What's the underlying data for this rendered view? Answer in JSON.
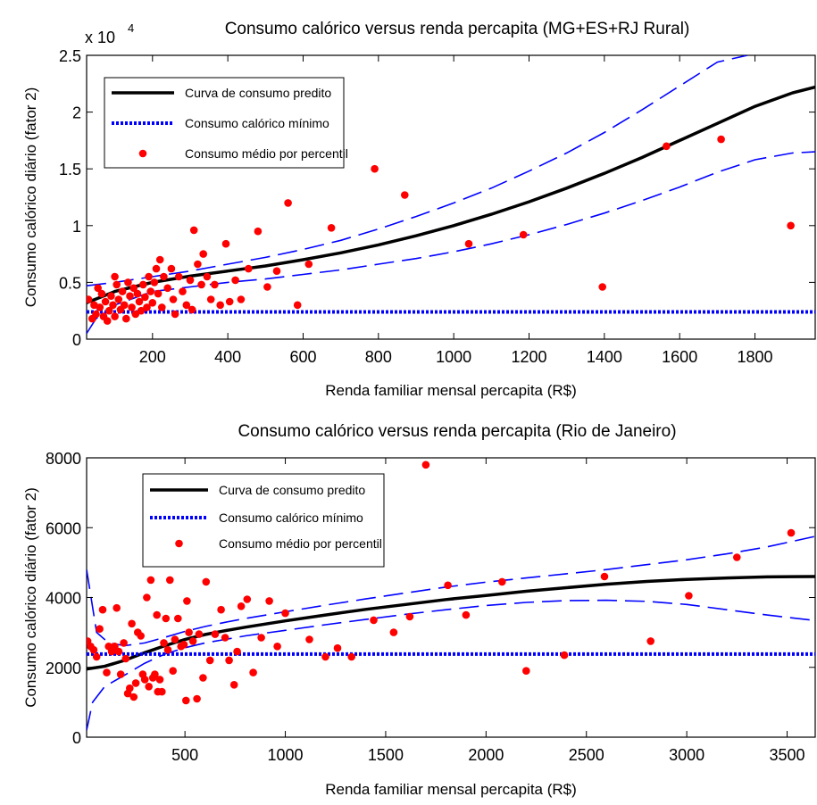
{
  "chart_data": [
    {
      "type": "scatter",
      "title": "Consumo calórico versus renda percapita (MG+ES+RJ Rural)",
      "xlabel": "Renda familiar mensal percapita (R$)",
      "ylabel": "Consumo calórico diário (fator 2)",
      "y_multiplier_label": "x 10",
      "y_multiplier_exponent": "4",
      "xlim": [
        25,
        1960
      ],
      "ylim": [
        0,
        2.5
      ],
      "x_ticks": [
        200,
        400,
        600,
        800,
        1000,
        1200,
        1400,
        1600,
        1800
      ],
      "x_tick_labels": [
        "200",
        "400",
        "600",
        "800",
        "1000",
        "1200",
        "1400",
        "1600",
        "1800"
      ],
      "y_ticks": [
        0,
        0.5,
        1,
        1.5,
        2,
        2.5
      ],
      "y_tick_labels": [
        "0",
        "0.5",
        "1",
        "1.5",
        "2",
        "2.5"
      ],
      "grid": false,
      "legend_position": "top-left",
      "colors": {
        "predicted": "#000000",
        "minimum": "#0000ff",
        "points": "#ff0000",
        "bounds": "#0000ff"
      },
      "series": [
        {
          "name": "Curva de consumo predito",
          "kind": "line",
          "x": [
            25,
            100,
            200,
            300,
            400,
            500,
            600,
            700,
            800,
            900,
            1000,
            1100,
            1200,
            1300,
            1400,
            1500,
            1600,
            1700,
            1800,
            1900,
            1960
          ],
          "y": [
            0.32,
            0.42,
            0.5,
            0.555,
            0.6,
            0.645,
            0.7,
            0.76,
            0.83,
            0.91,
            1.0,
            1.1,
            1.21,
            1.33,
            1.46,
            1.6,
            1.75,
            1.9,
            2.05,
            2.17,
            2.22
          ]
        },
        {
          "name": "Consumo calórico mínimo",
          "kind": "hline",
          "y": 0.24
        },
        {
          "name": "Consumo médio por percentil",
          "kind": "scatter",
          "points": [
            [
              30,
              0.35
            ],
            [
              40,
              0.18
            ],
            [
              45,
              0.3
            ],
            [
              50,
              0.22
            ],
            [
              55,
              0.45
            ],
            [
              60,
              0.28
            ],
            [
              65,
              0.4
            ],
            [
              70,
              0.2
            ],
            [
              75,
              0.33
            ],
            [
              80,
              0.16
            ],
            [
              85,
              0.25
            ],
            [
              90,
              0.38
            ],
            [
              95,
              0.3
            ],
            [
              100,
              0.55
            ],
            [
              100,
              0.2
            ],
            [
              105,
              0.48
            ],
            [
              110,
              0.35
            ],
            [
              115,
              0.26
            ],
            [
              120,
              0.42
            ],
            [
              125,
              0.3
            ],
            [
              130,
              0.18
            ],
            [
              135,
              0.5
            ],
            [
              140,
              0.38
            ],
            [
              145,
              0.28
            ],
            [
              150,
              0.45
            ],
            [
              155,
              0.22
            ],
            [
              160,
              0.4
            ],
            [
              165,
              0.33
            ],
            [
              170,
              0.25
            ],
            [
              175,
              0.48
            ],
            [
              180,
              0.37
            ],
            [
              185,
              0.28
            ],
            [
              190,
              0.55
            ],
            [
              195,
              0.42
            ],
            [
              200,
              0.32
            ],
            [
              205,
              0.5
            ],
            [
              210,
              0.62
            ],
            [
              215,
              0.4
            ],
            [
              220,
              0.7
            ],
            [
              225,
              0.28
            ],
            [
              230,
              0.55
            ],
            [
              240,
              0.45
            ],
            [
              250,
              0.62
            ],
            [
              255,
              0.35
            ],
            [
              260,
              0.22
            ],
            [
              270,
              0.55
            ],
            [
              280,
              0.42
            ],
            [
              290,
              0.3
            ],
            [
              300,
              0.52
            ],
            [
              305,
              0.26
            ],
            [
              310,
              0.96
            ],
            [
              320,
              0.66
            ],
            [
              330,
              0.48
            ],
            [
              335,
              0.75
            ],
            [
              345,
              0.55
            ],
            [
              355,
              0.35
            ],
            [
              365,
              0.48
            ],
            [
              380,
              0.3
            ],
            [
              395,
              0.84
            ],
            [
              405,
              0.33
            ],
            [
              420,
              0.52
            ],
            [
              435,
              0.35
            ],
            [
              455,
              0.62
            ],
            [
              480,
              0.95
            ],
            [
              505,
              0.46
            ],
            [
              530,
              0.6
            ],
            [
              560,
              1.2
            ],
            [
              585,
              0.3
            ],
            [
              615,
              0.66
            ],
            [
              675,
              0.98
            ],
            [
              790,
              1.5
            ],
            [
              870,
              1.27
            ],
            [
              1040,
              0.84
            ],
            [
              1185,
              0.92
            ],
            [
              1395,
              0.46
            ],
            [
              1565,
              1.7
            ],
            [
              1710,
              1.76
            ],
            [
              1895,
              1.0
            ]
          ]
        },
        {
          "name": "",
          "kind": "bound-upper",
          "x": [
            25,
            100,
            200,
            300,
            400,
            500,
            600,
            700,
            800,
            900,
            1000,
            1100,
            1200,
            1300,
            1400,
            1500,
            1600,
            1700,
            1780
          ],
          "y": [
            0.47,
            0.5,
            0.55,
            0.6,
            0.66,
            0.72,
            0.79,
            0.87,
            0.97,
            1.08,
            1.2,
            1.33,
            1.48,
            1.64,
            1.82,
            2.02,
            2.23,
            2.44,
            2.5
          ]
        },
        {
          "name": "",
          "kind": "bound-lower",
          "x": [
            25,
            50,
            100,
            200,
            300,
            400,
            500,
            600,
            700,
            800,
            900,
            1000,
            1100,
            1200,
            1300,
            1400,
            1500,
            1600,
            1700,
            1800,
            1900,
            1960
          ],
          "y": [
            0.05,
            0.18,
            0.3,
            0.42,
            0.46,
            0.5,
            0.53,
            0.57,
            0.61,
            0.66,
            0.71,
            0.77,
            0.84,
            0.92,
            1.01,
            1.11,
            1.22,
            1.34,
            1.47,
            1.58,
            1.64,
            1.65
          ]
        }
      ]
    },
    {
      "type": "scatter",
      "title": "Consumo calórico versus renda percapita (Rio de Janeiro)",
      "xlabel": "Renda familiar mensal percapita (R$)",
      "ylabel": "Consumo calórico diário (fator 2)",
      "y_multiplier_label": "",
      "y_multiplier_exponent": "",
      "xlim": [
        10,
        3640
      ],
      "ylim": [
        0,
        8000
      ],
      "x_ticks": [
        500,
        1000,
        1500,
        2000,
        2500,
        3000,
        3500
      ],
      "x_tick_labels": [
        "500",
        "1000",
        "1500",
        "2000",
        "2500",
        "3000",
        "3500"
      ],
      "y_ticks": [
        0,
        2000,
        4000,
        6000,
        8000
      ],
      "y_tick_labels": [
        "0",
        "2000",
        "4000",
        "6000",
        "8000"
      ],
      "grid": false,
      "legend_position": "top-left",
      "colors": {
        "predicted": "#000000",
        "minimum": "#0000ff",
        "points": "#ff0000",
        "bounds": "#0000ff"
      },
      "series": [
        {
          "name": "Curva de consumo predito",
          "kind": "line",
          "x": [
            10,
            100,
            200,
            300,
            400,
            500,
            600,
            700,
            800,
            1000,
            1200,
            1400,
            1600,
            1800,
            2000,
            2200,
            2400,
            2600,
            2800,
            3000,
            3200,
            3400,
            3640
          ],
          "y": [
            1950,
            2030,
            2200,
            2420,
            2620,
            2800,
            2940,
            3050,
            3150,
            3330,
            3500,
            3660,
            3800,
            3940,
            4060,
            4180,
            4280,
            4380,
            4460,
            4520,
            4560,
            4590,
            4600
          ]
        },
        {
          "name": "Consumo calórico mínimo",
          "kind": "hline",
          "y": 2380
        },
        {
          "name": "Consumo médio por percentil",
          "kind": "scatter",
          "points": [
            [
              15,
              2750
            ],
            [
              30,
              2600
            ],
            [
              45,
              2500
            ],
            [
              60,
              2300
            ],
            [
              75,
              3100
            ],
            [
              90,
              3650
            ],
            [
              110,
              1850
            ],
            [
              120,
              2600
            ],
            [
              135,
              2450
            ],
            [
              150,
              2600
            ],
            [
              160,
              3700
            ],
            [
              170,
              2450
            ],
            [
              180,
              1800
            ],
            [
              195,
              2700
            ],
            [
              205,
              2250
            ],
            [
              215,
              1250
            ],
            [
              225,
              1400
            ],
            [
              235,
              3250
            ],
            [
              245,
              1150
            ],
            [
              255,
              1550
            ],
            [
              265,
              3000
            ],
            [
              280,
              2900
            ],
            [
              290,
              1800
            ],
            [
              300,
              1650
            ],
            [
              310,
              4000
            ],
            [
              320,
              1450
            ],
            [
              330,
              4500
            ],
            [
              340,
              1700
            ],
            [
              350,
              1800
            ],
            [
              360,
              3500
            ],
            [
              365,
              1300
            ],
            [
              375,
              1650
            ],
            [
              385,
              1300
            ],
            [
              395,
              2700
            ],
            [
              405,
              3400
            ],
            [
              415,
              2500
            ],
            [
              425,
              4500
            ],
            [
              440,
              1900
            ],
            [
              450,
              2800
            ],
            [
              465,
              3400
            ],
            [
              480,
              2600
            ],
            [
              495,
              2650
            ],
            [
              505,
              1050
            ],
            [
              510,
              3900
            ],
            [
              520,
              3000
            ],
            [
              540,
              2750
            ],
            [
              560,
              1100
            ],
            [
              570,
              2950
            ],
            [
              590,
              1700
            ],
            [
              605,
              4450
            ],
            [
              625,
              2200
            ],
            [
              650,
              2950
            ],
            [
              680,
              3650
            ],
            [
              700,
              2850
            ],
            [
              720,
              2200
            ],
            [
              745,
              1500
            ],
            [
              760,
              2450
            ],
            [
              780,
              3750
            ],
            [
              810,
              3950
            ],
            [
              840,
              1850
            ],
            [
              880,
              2850
            ],
            [
              920,
              3900
            ],
            [
              960,
              2600
            ],
            [
              1000,
              3550
            ],
            [
              1120,
              2800
            ],
            [
              1200,
              2300
            ],
            [
              1260,
              2550
            ],
            [
              1330,
              2300
            ],
            [
              1440,
              3350
            ],
            [
              1540,
              3000
            ],
            [
              1620,
              3450
            ],
            [
              1700,
              7800
            ],
            [
              1810,
              4350
            ],
            [
              1900,
              3500
            ],
            [
              2080,
              4450
            ],
            [
              2200,
              1900
            ],
            [
              2390,
              2350
            ],
            [
              2590,
              4600
            ],
            [
              2820,
              2750
            ],
            [
              3010,
              4050
            ],
            [
              3250,
              5150
            ],
            [
              3520,
              5850
            ]
          ]
        },
        {
          "name": "",
          "kind": "bound-upper",
          "x": [
            10,
            60,
            120,
            200,
            300,
            400,
            500,
            600,
            700,
            800,
            1000,
            1200,
            1400,
            1600,
            1800,
            2000,
            2200,
            2400,
            2600,
            2800,
            3000,
            3200,
            3400,
            3640
          ],
          "y": [
            4800,
            3000,
            2700,
            2620,
            2700,
            2860,
            3030,
            3170,
            3290,
            3400,
            3590,
            3780,
            3960,
            4130,
            4300,
            4440,
            4560,
            4680,
            4800,
            4940,
            5080,
            5250,
            5450,
            5750
          ]
        },
        {
          "name": "",
          "kind": "bound-lower",
          "x": [
            10,
            40,
            100,
            200,
            300,
            400,
            500,
            600,
            700,
            800,
            1000,
            1200,
            1400,
            1600,
            1800,
            2000,
            2200,
            2400,
            2600,
            2800,
            3000,
            3200,
            3400,
            3640
          ],
          "y": [
            200,
            1000,
            1450,
            1780,
            2120,
            2380,
            2560,
            2700,
            2800,
            2900,
            3060,
            3220,
            3370,
            3520,
            3650,
            3770,
            3860,
            3910,
            3920,
            3890,
            3800,
            3650,
            3500,
            3340
          ]
        }
      ]
    }
  ]
}
